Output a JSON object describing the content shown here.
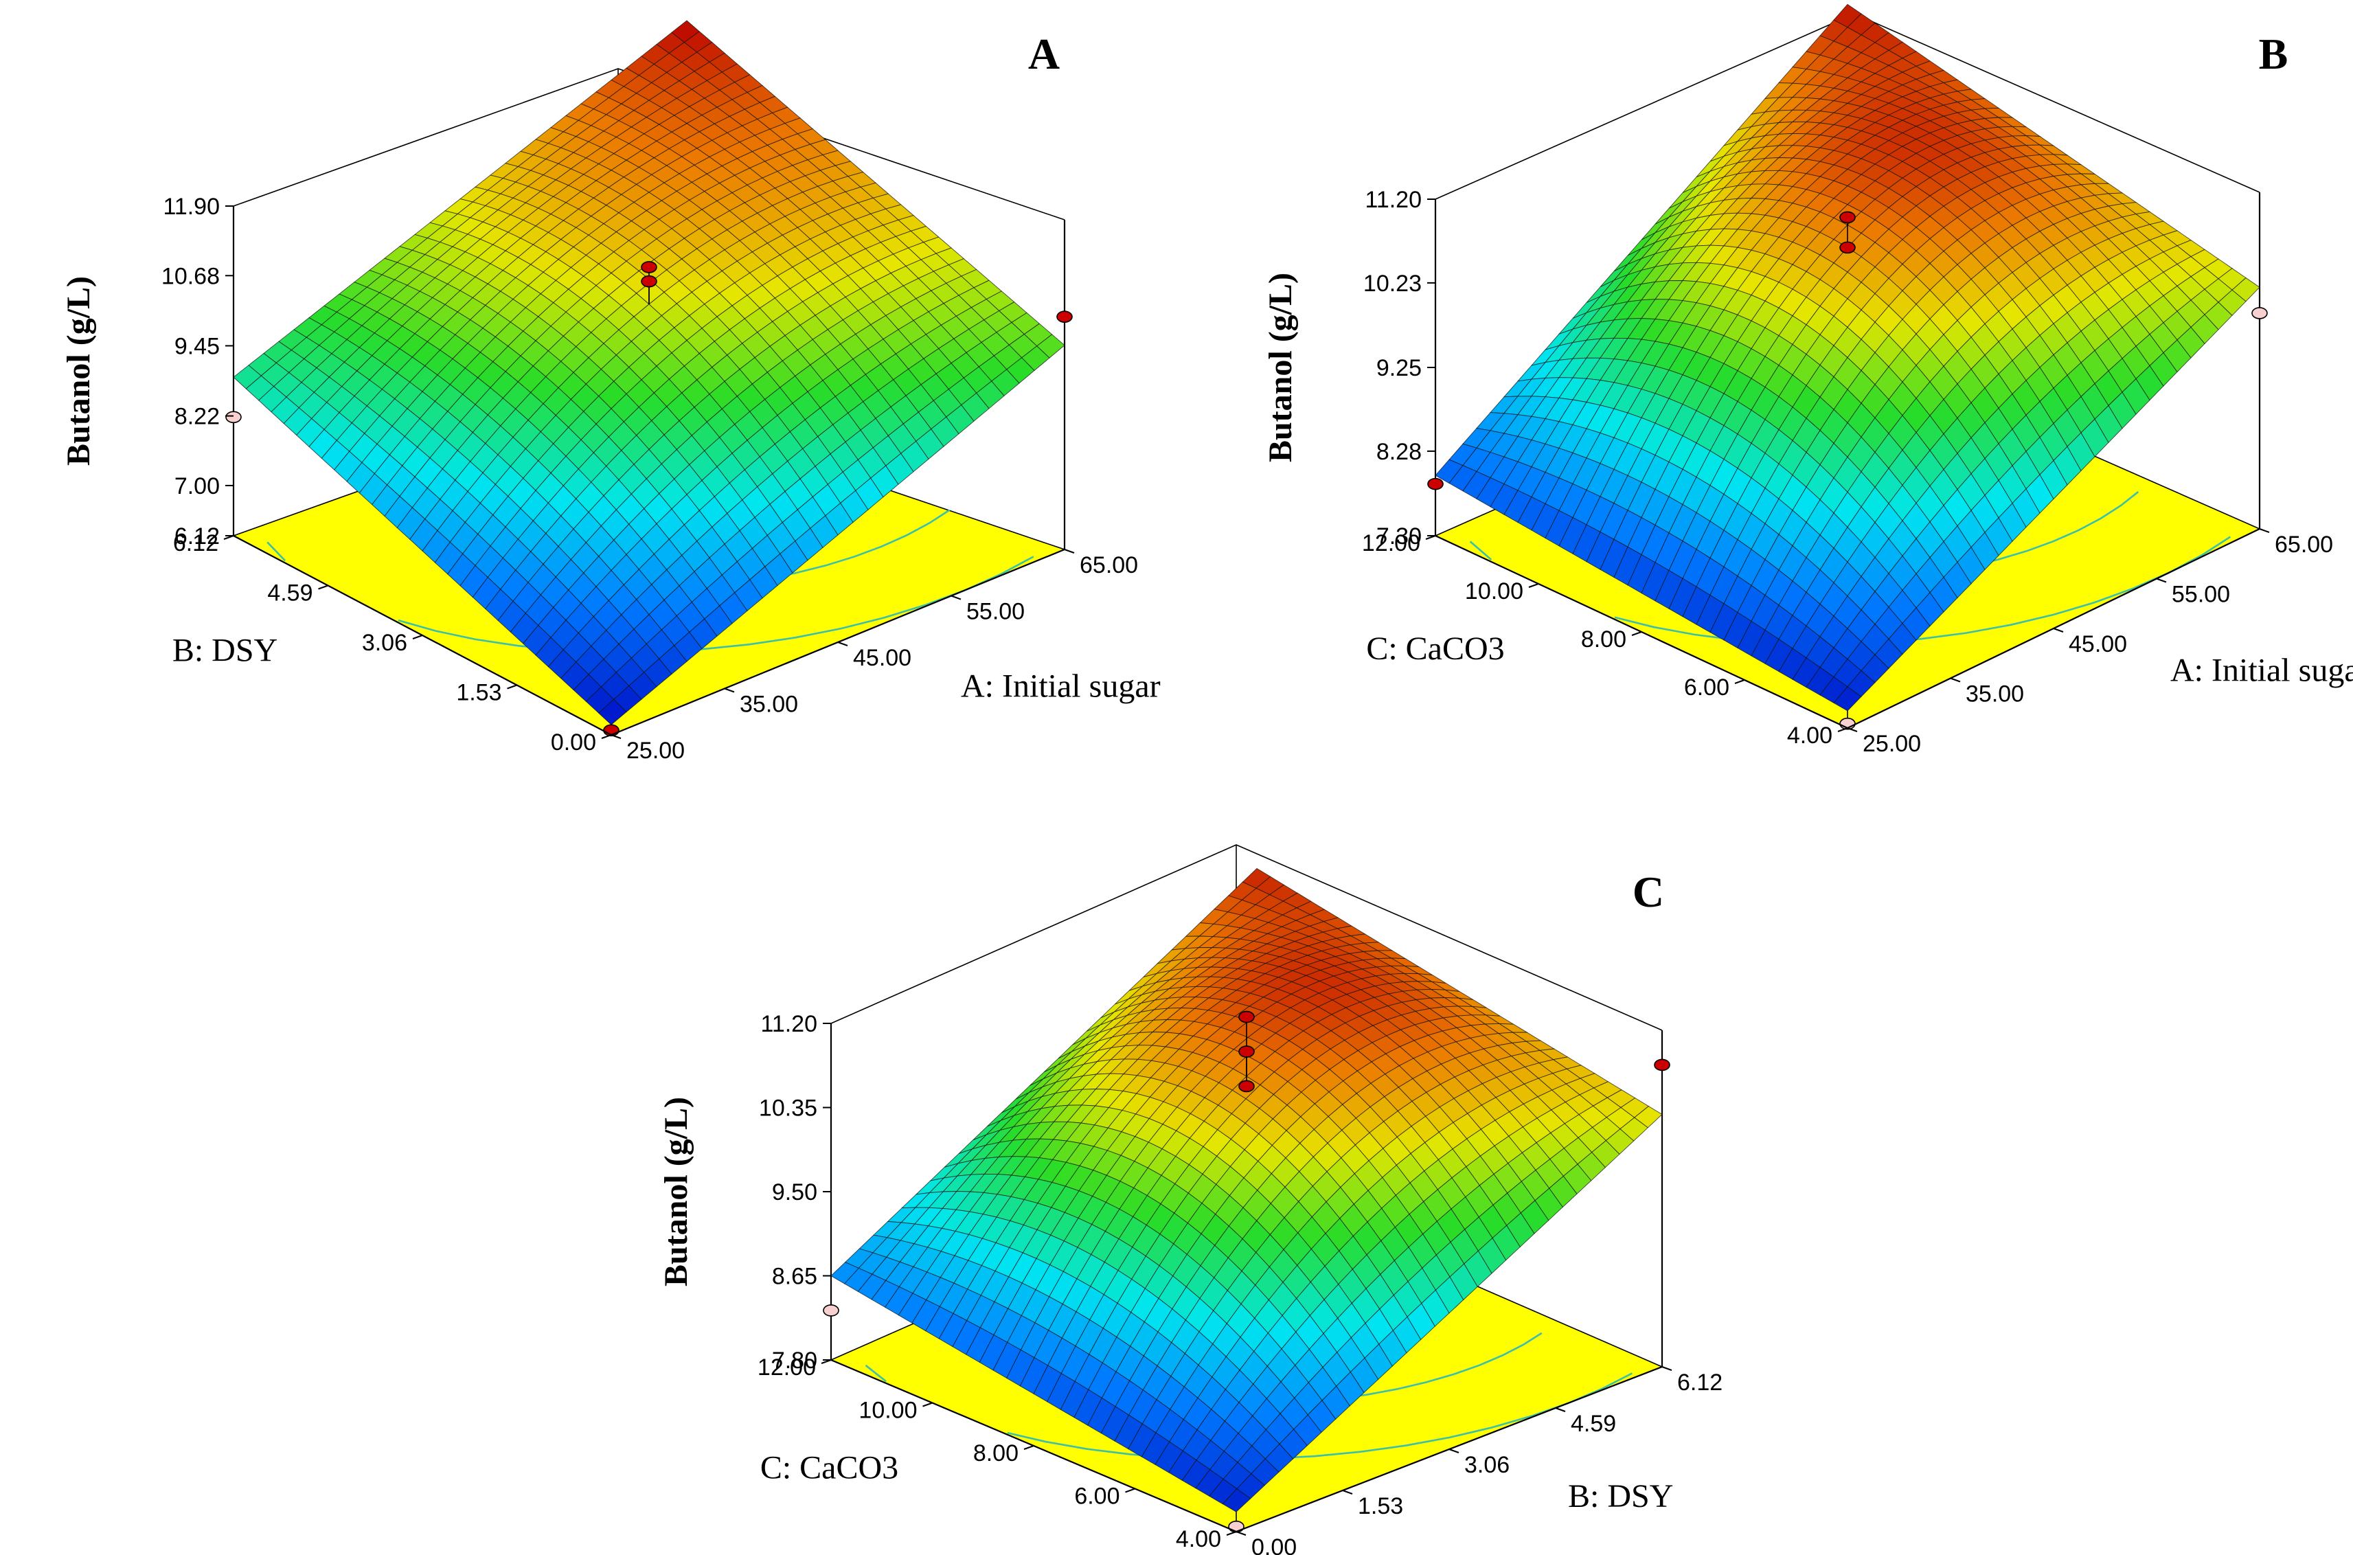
{
  "chart_data": [
    {
      "type": "surface",
      "panel": "A",
      "zlabel": "Butanol (g/L)",
      "zticks": [
        "11.90",
        "10.68",
        "9.45",
        "8.22",
        "7.00",
        "6.12"
      ],
      "zlim": [
        6.12,
        11.9
      ],
      "x_axis": {
        "label": "A: Initial sugar",
        "ticks": [
          "25.00",
          "35.00",
          "45.00",
          "55.00",
          "65.00"
        ],
        "range": [
          25,
          65
        ]
      },
      "y_axis": {
        "label": "B: DSY",
        "ticks": [
          "0.00",
          "1.53",
          "3.06",
          "4.59",
          "6.12"
        ],
        "range": [
          0,
          6.12
        ]
      },
      "surface": {
        "z_front": 6.3,
        "z_right": 9.7,
        "z_left": 8.9,
        "z_back": 11.9,
        "z_center": 10.3
      },
      "design_points": [
        {
          "x": 45,
          "y": 3.06,
          "z": 10.95,
          "above": true
        },
        {
          "x": 45,
          "y": 3.06,
          "z": 10.7,
          "above": true
        },
        {
          "x": 25,
          "y": 0.0,
          "z": 6.2,
          "above": true
        },
        {
          "x": 65,
          "y": 0.0,
          "z": 10.2,
          "above": true
        },
        {
          "x": 25,
          "y": 6.12,
          "z": 8.2,
          "above": false
        }
      ]
    },
    {
      "type": "surface",
      "panel": "B",
      "zlabel": "Butanol (g/L)",
      "zticks": [
        "11.20",
        "10.23",
        "9.25",
        "8.28",
        "7.30"
      ],
      "zlim": [
        7.3,
        11.2
      ],
      "x_axis": {
        "label": "A: Initial sugar",
        "ticks": [
          "25.00",
          "35.00",
          "45.00",
          "55.00",
          "65.00"
        ],
        "range": [
          25,
          65
        ]
      },
      "y_axis": {
        "label": "C: CaCO3",
        "ticks": [
          "4.00",
          "6.00",
          "8.00",
          "10.00",
          "12.00"
        ],
        "range": [
          4,
          12
        ]
      },
      "surface": {
        "z_front": 7.5,
        "z_right": 10.1,
        "z_left": 8.0,
        "z_back": 11.15,
        "z_center": 10.6
      },
      "design_points": [
        {
          "x": 45,
          "y": 8.0,
          "z": 10.95,
          "above": true
        },
        {
          "x": 45,
          "y": 8.0,
          "z": 10.6,
          "above": true
        },
        {
          "x": 25,
          "y": 12.0,
          "z": 7.9,
          "above": true
        },
        {
          "x": 25,
          "y": 4.0,
          "z": 7.35,
          "above": false
        },
        {
          "x": 65,
          "y": 4.0,
          "z": 9.8,
          "above": false
        }
      ]
    },
    {
      "type": "surface",
      "panel": "C",
      "zlabel": "Butanol (g/L)",
      "zticks": [
        "11.20",
        "10.35",
        "9.50",
        "8.65",
        "7.80"
      ],
      "zlim": [
        7.8,
        11.2
      ],
      "x_axis": {
        "label": "B: DSY",
        "ticks": [
          "0.00",
          "1.53",
          "3.06",
          "4.59",
          "6.12"
        ],
        "range": [
          0,
          6.12
        ]
      },
      "y_axis": {
        "label": "C: CaCO3",
        "ticks": [
          "4.00",
          "6.00",
          "8.00",
          "10.00",
          "12.00"
        ],
        "range": [
          4,
          12
        ]
      },
      "surface": {
        "z_front": 8.0,
        "z_right": 10.35,
        "z_left": 8.65,
        "z_back": 11.1,
        "z_center": 10.7
      },
      "design_points": [
        {
          "x": 3.06,
          "y": 8.0,
          "z": 11.3,
          "above": true
        },
        {
          "x": 3.06,
          "y": 8.0,
          "z": 10.95,
          "above": true
        },
        {
          "x": 3.06,
          "y": 8.0,
          "z": 10.6,
          "above": true
        },
        {
          "x": 6.12,
          "y": 4.0,
          "z": 10.85,
          "above": true
        },
        {
          "x": 0.0,
          "y": 12.0,
          "z": 8.3,
          "above": false
        },
        {
          "x": 0.0,
          "y": 4.0,
          "z": 7.85,
          "above": false
        }
      ]
    }
  ]
}
